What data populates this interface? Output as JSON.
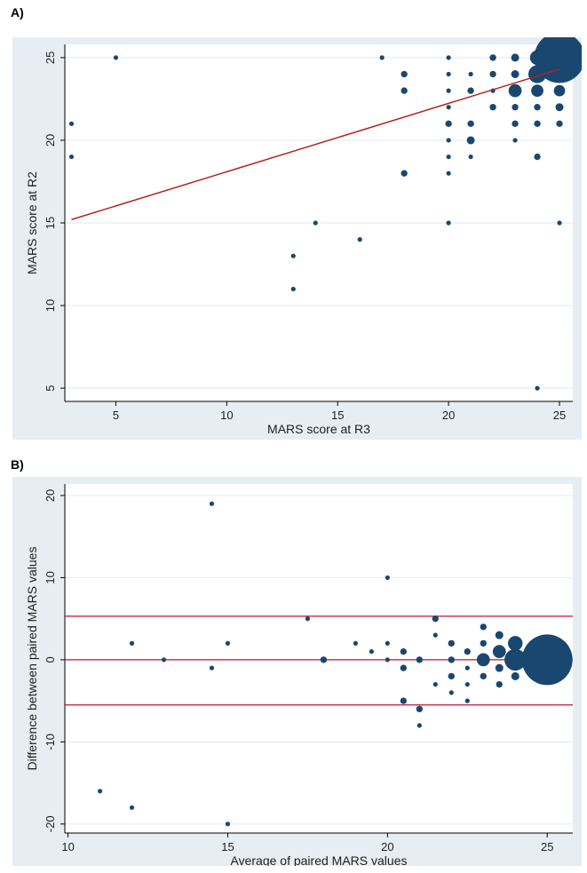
{
  "chart_data": [
    {
      "panel": "A)",
      "type": "scatter",
      "xlabel": "MARS score at R3",
      "ylabel": "MARS score at R2",
      "xlim": [
        2.7,
        25.6
      ],
      "ylim": [
        4.2,
        25.8
      ],
      "xticks": [
        5,
        10,
        15,
        20,
        25
      ],
      "yticks": [
        5,
        10,
        15,
        20,
        25
      ],
      "grid": true,
      "marker_color": "#1a476f",
      "fit_color": "#b22222",
      "points": [
        {
          "x": 3,
          "y": 21,
          "n": 1
        },
        {
          "x": 3,
          "y": 19,
          "n": 1
        },
        {
          "x": 5,
          "y": 25,
          "n": 1
        },
        {
          "x": 13,
          "y": 13,
          "n": 1
        },
        {
          "x": 13,
          "y": 11,
          "n": 1
        },
        {
          "x": 14,
          "y": 15,
          "n": 1
        },
        {
          "x": 16,
          "y": 14,
          "n": 1
        },
        {
          "x": 17,
          "y": 25,
          "n": 1
        },
        {
          "x": 18,
          "y": 24,
          "n": 2
        },
        {
          "x": 18,
          "y": 23,
          "n": 2
        },
        {
          "x": 18,
          "y": 18,
          "n": 2
        },
        {
          "x": 20,
          "y": 25,
          "n": 1
        },
        {
          "x": 20,
          "y": 24,
          "n": 1
        },
        {
          "x": 20,
          "y": 23,
          "n": 1
        },
        {
          "x": 20,
          "y": 22,
          "n": 1
        },
        {
          "x": 20,
          "y": 21,
          "n": 2
        },
        {
          "x": 20,
          "y": 20,
          "n": 1
        },
        {
          "x": 20,
          "y": 19,
          "n": 1
        },
        {
          "x": 20,
          "y": 18,
          "n": 1
        },
        {
          "x": 20,
          "y": 15,
          "n": 1
        },
        {
          "x": 21,
          "y": 24,
          "n": 1
        },
        {
          "x": 21,
          "y": 23,
          "n": 2
        },
        {
          "x": 21,
          "y": 21,
          "n": 2
        },
        {
          "x": 21,
          "y": 20,
          "n": 3
        },
        {
          "x": 21,
          "y": 19,
          "n": 1
        },
        {
          "x": 22,
          "y": 25,
          "n": 2
        },
        {
          "x": 22,
          "y": 24,
          "n": 2
        },
        {
          "x": 22,
          "y": 23,
          "n": 1
        },
        {
          "x": 22,
          "y": 22,
          "n": 2
        },
        {
          "x": 23,
          "y": 25,
          "n": 3
        },
        {
          "x": 23,
          "y": 24,
          "n": 3
        },
        {
          "x": 23,
          "y": 23,
          "n": 8
        },
        {
          "x": 23,
          "y": 22,
          "n": 2
        },
        {
          "x": 23,
          "y": 21,
          "n": 2
        },
        {
          "x": 23,
          "y": 20,
          "n": 1
        },
        {
          "x": 24,
          "y": 25,
          "n": 10
        },
        {
          "x": 24,
          "y": 24,
          "n": 15
        },
        {
          "x": 24,
          "y": 23,
          "n": 7
        },
        {
          "x": 24,
          "y": 22,
          "n": 2
        },
        {
          "x": 24,
          "y": 21,
          "n": 2
        },
        {
          "x": 24,
          "y": 19,
          "n": 2
        },
        {
          "x": 24,
          "y": 5,
          "n": 1
        },
        {
          "x": 25,
          "y": 25,
          "n": 120
        },
        {
          "x": 25,
          "y": 24,
          "n": 8
        },
        {
          "x": 25,
          "y": 23,
          "n": 6
        },
        {
          "x": 25,
          "y": 22,
          "n": 3
        },
        {
          "x": 25,
          "y": 21,
          "n": 2
        },
        {
          "x": 25,
          "y": 15,
          "n": 1
        }
      ],
      "fit_line": {
        "x": [
          3,
          25
        ],
        "y": [
          15.2,
          24.3
        ]
      }
    },
    {
      "panel": "B)",
      "type": "scatter",
      "xlabel": "Average of paired MARS values",
      "ylabel": "Difference between paired MARS values",
      "xlim": [
        9.9,
        25.8
      ],
      "ylim": [
        -21.1,
        21.4
      ],
      "xticks": [
        10,
        15,
        20,
        25
      ],
      "yticks": [
        -20,
        -10,
        0,
        10,
        20
      ],
      "grid": true,
      "marker_color": "#1a476f",
      "line_color": "#c8102e",
      "reference_lines": [
        5.3,
        0,
        -5.5
      ],
      "points": [
        {
          "x": 11,
          "y": -16,
          "n": 1
        },
        {
          "x": 12,
          "y": 2,
          "n": 1
        },
        {
          "x": 12,
          "y": -18,
          "n": 1
        },
        {
          "x": 13,
          "y": 0,
          "n": 1
        },
        {
          "x": 14.5,
          "y": 19,
          "n": 1
        },
        {
          "x": 14.5,
          "y": -1,
          "n": 1
        },
        {
          "x": 15,
          "y": 2,
          "n": 1
        },
        {
          "x": 15,
          "y": -20,
          "n": 1
        },
        {
          "x": 17.5,
          "y": 5,
          "n": 1
        },
        {
          "x": 18,
          "y": 0,
          "n": 2
        },
        {
          "x": 19,
          "y": 2,
          "n": 1
        },
        {
          "x": 19.5,
          "y": 1,
          "n": 1
        },
        {
          "x": 20,
          "y": 10,
          "n": 1
        },
        {
          "x": 20,
          "y": 2,
          "n": 1
        },
        {
          "x": 20,
          "y": 0,
          "n": 1
        },
        {
          "x": 20.5,
          "y": 1,
          "n": 2
        },
        {
          "x": 20.5,
          "y": -1,
          "n": 2
        },
        {
          "x": 20.5,
          "y": -5,
          "n": 2
        },
        {
          "x": 21,
          "y": 0,
          "n": 2
        },
        {
          "x": 21,
          "y": -6,
          "n": 2
        },
        {
          "x": 21,
          "y": -8,
          "n": 1
        },
        {
          "x": 21.5,
          "y": 5,
          "n": 2
        },
        {
          "x": 21.5,
          "y": 3,
          "n": 1
        },
        {
          "x": 21.5,
          "y": -3,
          "n": 1
        },
        {
          "x": 22,
          "y": 2,
          "n": 2
        },
        {
          "x": 22,
          "y": 0,
          "n": 2
        },
        {
          "x": 22,
          "y": -2,
          "n": 2
        },
        {
          "x": 22,
          "y": -4,
          "n": 1
        },
        {
          "x": 22.5,
          "y": 1,
          "n": 2
        },
        {
          "x": 22.5,
          "y": -1,
          "n": 1
        },
        {
          "x": 22.5,
          "y": -3,
          "n": 1
        },
        {
          "x": 22.5,
          "y": -5,
          "n": 1
        },
        {
          "x": 23,
          "y": 4,
          "n": 2
        },
        {
          "x": 23,
          "y": 2,
          "n": 2
        },
        {
          "x": 23,
          "y": 0,
          "n": 8
        },
        {
          "x": 23,
          "y": -2,
          "n": 2
        },
        {
          "x": 23.5,
          "y": 3,
          "n": 3
        },
        {
          "x": 23.5,
          "y": 1,
          "n": 8
        },
        {
          "x": 23.5,
          "y": -1,
          "n": 3
        },
        {
          "x": 23.5,
          "y": -3,
          "n": 2
        },
        {
          "x": 24,
          "y": 2,
          "n": 10
        },
        {
          "x": 24,
          "y": 0,
          "n": 22
        },
        {
          "x": 24,
          "y": -2,
          "n": 3
        },
        {
          "x": 25,
          "y": 0,
          "n": 120
        }
      ]
    }
  ]
}
